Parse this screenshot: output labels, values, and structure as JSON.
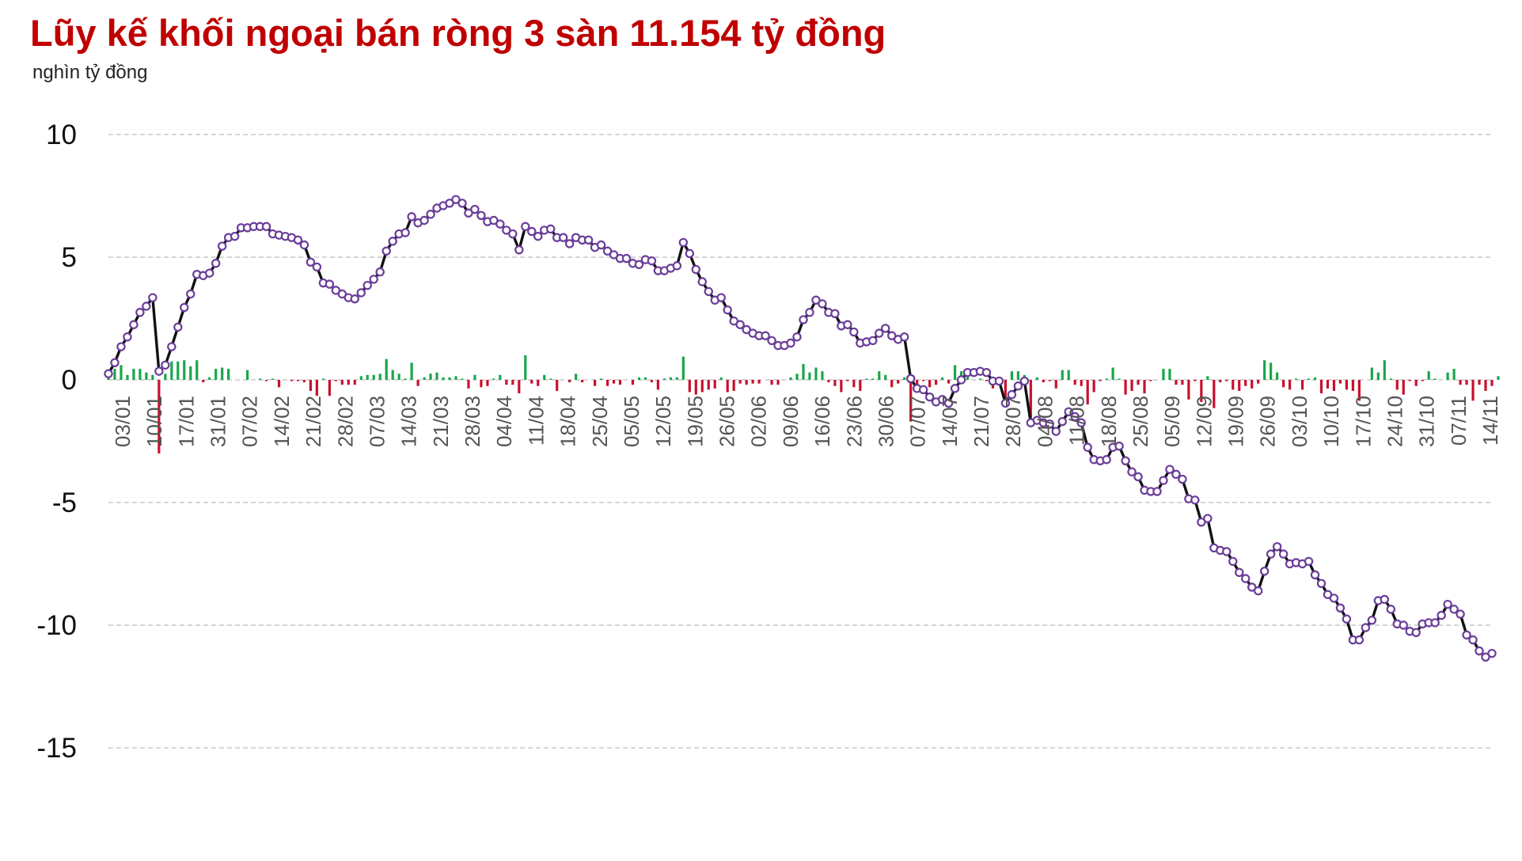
{
  "title": "Lũy kế khối ngoại bán ròng 3 sàn 11.154 tỷ đồng",
  "unit_label": "nghìn tỷ đồng",
  "colors": {
    "title": "#c00000",
    "line": "#111111",
    "marker_stroke": "#6a3d9a",
    "marker_fill": "#ffffff",
    "bar_positive": "#19a64a",
    "bar_negative": "#c8102e",
    "grid": "#c8c8c8"
  },
  "chart_data": {
    "type": "line",
    "title": "Lũy kế khối ngoại bán ròng 3 sàn 11.154 tỷ đồng",
    "ylabel": "nghìn tỷ đồng",
    "xlabel": "",
    "ylim": [
      -15,
      10
    ],
    "yticks": [
      10,
      5,
      0,
      -5,
      -10,
      -15
    ],
    "grid": "horizontal dashed",
    "x_ticks": [
      "03/01",
      "10/01",
      "17/01",
      "31/01",
      "07/02",
      "14/02",
      "21/02",
      "28/02",
      "07/03",
      "14/03",
      "21/03",
      "28/03",
      "04/04",
      "11/04",
      "18/04",
      "25/04",
      "05/05",
      "12/05",
      "19/05",
      "26/05",
      "02/06",
      "09/06",
      "16/06",
      "23/06",
      "30/06",
      "07/07",
      "14/07",
      "21/07",
      "28/07",
      "04/08",
      "11/08",
      "18/08",
      "25/08",
      "05/09",
      "12/09",
      "19/09",
      "26/09",
      "03/10",
      "10/10",
      "17/10",
      "24/10",
      "31/10",
      "07/11",
      "14/11"
    ],
    "series": [
      {
        "type": "line",
        "values": [
          0.25,
          0.7,
          1.35,
          1.75,
          2.25,
          2.75,
          3.0,
          3.35,
          0.35,
          0.6,
          1.35,
          2.15,
          2.95,
          3.5,
          4.3,
          4.25,
          4.35,
          4.75,
          5.45,
          5.8,
          5.85,
          6.2,
          6.2,
          6.25,
          6.25,
          6.25,
          5.95,
          5.9,
          5.85,
          5.8,
          5.7,
          5.5,
          4.8,
          4.6,
          3.95,
          3.9,
          3.65,
          3.5,
          3.35,
          3.3,
          3.55,
          3.85,
          4.1,
          4.4,
          5.25,
          5.65,
          5.95,
          6.0,
          6.65,
          6.4,
          6.5,
          6.75,
          7.0,
          7.1,
          7.2,
          7.35,
          7.2,
          6.8,
          6.95,
          6.7,
          6.45,
          6.5,
          6.35,
          6.1,
          5.95,
          5.3,
          6.25,
          6.05,
          5.85,
          6.1,
          6.15,
          5.8,
          5.8,
          5.55,
          5.8,
          5.7,
          5.7,
          5.4,
          5.5,
          5.25,
          5.1,
          4.95,
          4.95,
          4.75,
          4.7,
          4.9,
          4.85,
          4.45,
          4.45,
          4.55,
          4.65,
          5.6,
          5.15,
          4.5,
          4.0,
          3.6,
          3.25,
          3.35,
          2.85,
          2.4,
          2.25,
          2.05,
          1.9,
          1.8,
          1.8,
          1.6,
          1.4,
          1.4,
          1.5,
          1.75,
          2.45,
          2.75,
          3.25,
          3.1,
          2.75,
          2.7,
          2.2,
          2.25,
          1.95,
          1.5,
          1.55,
          1.6,
          1.9,
          2.1,
          1.8,
          1.65,
          1.75,
          0.05,
          -0.35,
          -0.4,
          -0.7,
          -0.9,
          -0.8,
          -0.95,
          -0.35,
          0.0,
          0.3,
          0.3,
          0.35,
          0.3,
          -0.05,
          -0.05,
          -0.95,
          -0.6,
          -0.25,
          -0.05,
          -1.75,
          -1.65,
          -1.75,
          -1.8,
          -2.1,
          -1.7,
          -1.3,
          -1.5,
          -1.75,
          -2.75,
          -3.25,
          -3.3,
          -3.25,
          -2.75,
          -2.7,
          -3.3,
          -3.75,
          -3.95,
          -4.5,
          -4.55,
          -4.55,
          -4.1,
          -3.65,
          -3.85,
          -4.05,
          -4.85,
          -4.9,
          -5.8,
          -5.65,
          -6.85,
          -6.95,
          -7.0,
          -7.4,
          -7.85,
          -8.1,
          -8.45,
          -8.6,
          -7.8,
          -7.1,
          -6.8,
          -7.1,
          -7.5,
          -7.45,
          -7.5,
          -7.4,
          -7.95,
          -8.3,
          -8.75,
          -8.9,
          -9.3,
          -9.75,
          -10.6,
          -10.6,
          -10.1,
          -9.8,
          -9.0,
          -8.95,
          -9.35,
          -9.95,
          -10.0,
          -10.25,
          -10.3,
          -9.95,
          -9.9,
          -9.9,
          -9.6,
          -9.15,
          -9.35,
          -9.55,
          -10.4,
          -10.6,
          -11.05,
          -11.3,
          -11.15
        ]
      },
      {
        "type": "bar",
        "values": [
          0.2,
          0.45,
          0.6,
          0.2,
          0.45,
          0.45,
          0.3,
          0.2,
          -3.0,
          0.25,
          0.75,
          0.75,
          0.8,
          0.55,
          0.8,
          -0.1,
          0.1,
          0.45,
          0.5,
          0.45,
          0.0,
          0.0,
          0.4,
          0.0,
          0.05,
          -0.05,
          0.05,
          -0.3,
          0.0,
          -0.05,
          -0.05,
          -0.1,
          -0.45,
          -0.65,
          0.05,
          -0.65,
          -0.05,
          -0.2,
          -0.2,
          -0.2,
          0.15,
          0.2,
          0.2,
          0.25,
          0.85,
          0.4,
          0.25,
          0.05,
          0.7,
          -0.25,
          0.1,
          0.25,
          0.3,
          0.1,
          0.1,
          0.15,
          0.05,
          -0.35,
          0.2,
          -0.3,
          -0.25,
          0.05,
          0.2,
          -0.2,
          -0.2,
          -0.55,
          1.0,
          -0.15,
          -0.25,
          0.2,
          0.05,
          -0.45,
          0.0,
          -0.1,
          0.25,
          -0.1,
          0.0,
          -0.25,
          0.05,
          -0.25,
          -0.15,
          -0.2,
          0.0,
          -0.2,
          0.1,
          0.1,
          -0.1,
          -0.4,
          0.05,
          0.1,
          0.1,
          0.95,
          -0.5,
          -0.6,
          -0.5,
          -0.4,
          -0.35,
          0.1,
          -0.5,
          -0.45,
          -0.15,
          -0.2,
          -0.15,
          -0.15,
          0.0,
          -0.2,
          -0.2,
          0.0,
          0.1,
          0.25,
          0.65,
          0.3,
          0.5,
          0.35,
          -0.1,
          -0.25,
          -0.5,
          -0.05,
          -0.3,
          -0.45,
          0.05,
          0.05,
          0.35,
          0.2,
          -0.3,
          -0.15,
          0.1,
          -1.7,
          -0.4,
          -0.05,
          -0.3,
          -0.2,
          0.1,
          -0.15,
          0.6,
          0.35,
          0.3,
          0.0,
          0.05,
          -0.05,
          -0.35,
          0.0,
          -0.9,
          0.35,
          0.35,
          0.2,
          -1.7,
          0.1,
          -0.1,
          -0.05,
          -0.35,
          0.4,
          0.4,
          -0.2,
          -0.25,
          -1.0,
          -0.5,
          -0.05,
          0.05,
          0.5,
          0.05,
          -0.6,
          -0.45,
          -0.2,
          -0.55,
          -0.05,
          0.0,
          0.45,
          0.45,
          -0.2,
          -0.2,
          -0.8,
          -0.05,
          -0.9,
          0.15,
          -1.15,
          -0.1,
          -0.05,
          -0.4,
          -0.45,
          -0.25,
          -0.35,
          -0.15,
          0.8,
          0.7,
          0.3,
          -0.3,
          -0.4,
          0.05,
          -0.4,
          0.05,
          0.1,
          -0.55,
          -0.35,
          -0.45,
          -0.15,
          -0.4,
          -0.45,
          -0.85,
          0.0,
          0.5,
          0.3,
          0.8,
          0.05,
          -0.4,
          -0.6,
          -0.05,
          -0.25,
          -0.05,
          0.35,
          0.05,
          0.0,
          0.3,
          0.45,
          -0.2,
          -0.2,
          -0.85,
          -0.2,
          -0.45,
          -0.25,
          0.15
        ]
      }
    ]
  }
}
